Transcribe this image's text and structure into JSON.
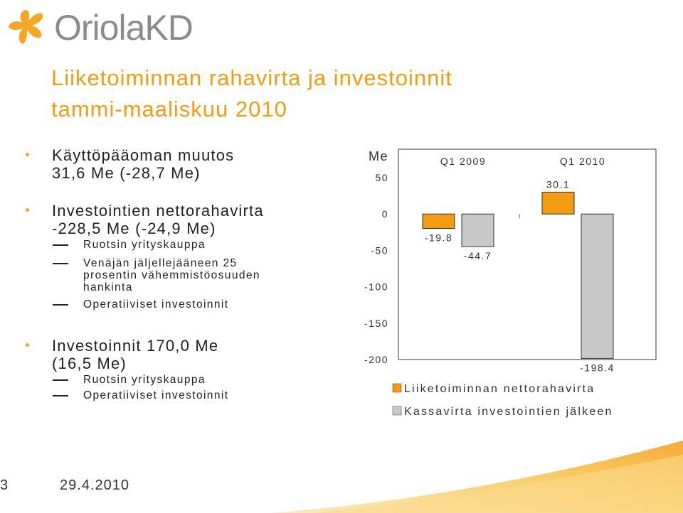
{
  "logo": {
    "text": "OriolaKD",
    "icon": "oriola-star-icon"
  },
  "title": {
    "line1": "Liiketoiminnan rahavirta ja investoinnit",
    "line2": "tammi-maaliskuu 2010"
  },
  "bullets": [
    {
      "line1": "Käyttöpääoman muutos",
      "line2": "31,6 Me (-28,7 Me)",
      "subs": []
    },
    {
      "line1": "Investointien nettorahavirta",
      "line2": "-228,5 Me (-24,9 Me)",
      "subs": [
        {
          "lines": [
            "Ruotsin yrityskauppa"
          ]
        },
        {
          "lines": [
            "Venäjän jäljellejääneen 25",
            "prosentin vähemmistöosuuden",
            "hankinta"
          ]
        },
        {
          "lines": [
            "Operatiiviset investoinnit"
          ]
        }
      ]
    },
    {
      "line1": "Investoinnit 170,0 Me",
      "line2": "(16,5 Me)",
      "subs": [
        {
          "lines": [
            "Ruotsin yrityskauppa"
          ]
        },
        {
          "lines": [
            "Operatiiviset investoinnit"
          ]
        }
      ]
    }
  ],
  "chart_data": {
    "type": "bar",
    "unit_label": "Me",
    "categories": [
      "Q1 2009",
      "Q1 2010"
    ],
    "series": [
      {
        "name": "Liiketoiminnan nettorahavirta",
        "color": "#f39c12",
        "values": [
          -19.8,
          30.1
        ]
      },
      {
        "name": "Kassavirta investointien jälkeen",
        "color": "#c8c8c8",
        "values": [
          -44.7,
          -198.4
        ]
      }
    ],
    "data_labels": [
      [
        "-19.8",
        "30.1"
      ],
      [
        "-44.7",
        "-198.4"
      ]
    ],
    "yticks": [
      50,
      0,
      -50,
      -100,
      -150,
      -200
    ],
    "ylim": [
      -200,
      50
    ],
    "legend_position": "bottom"
  },
  "footer": {
    "slide_number": "3",
    "date": "29.4.2010"
  },
  "colors": {
    "accent": "#f39c12",
    "title": "#f39c12",
    "gray_bar": "#c8c8c8"
  }
}
